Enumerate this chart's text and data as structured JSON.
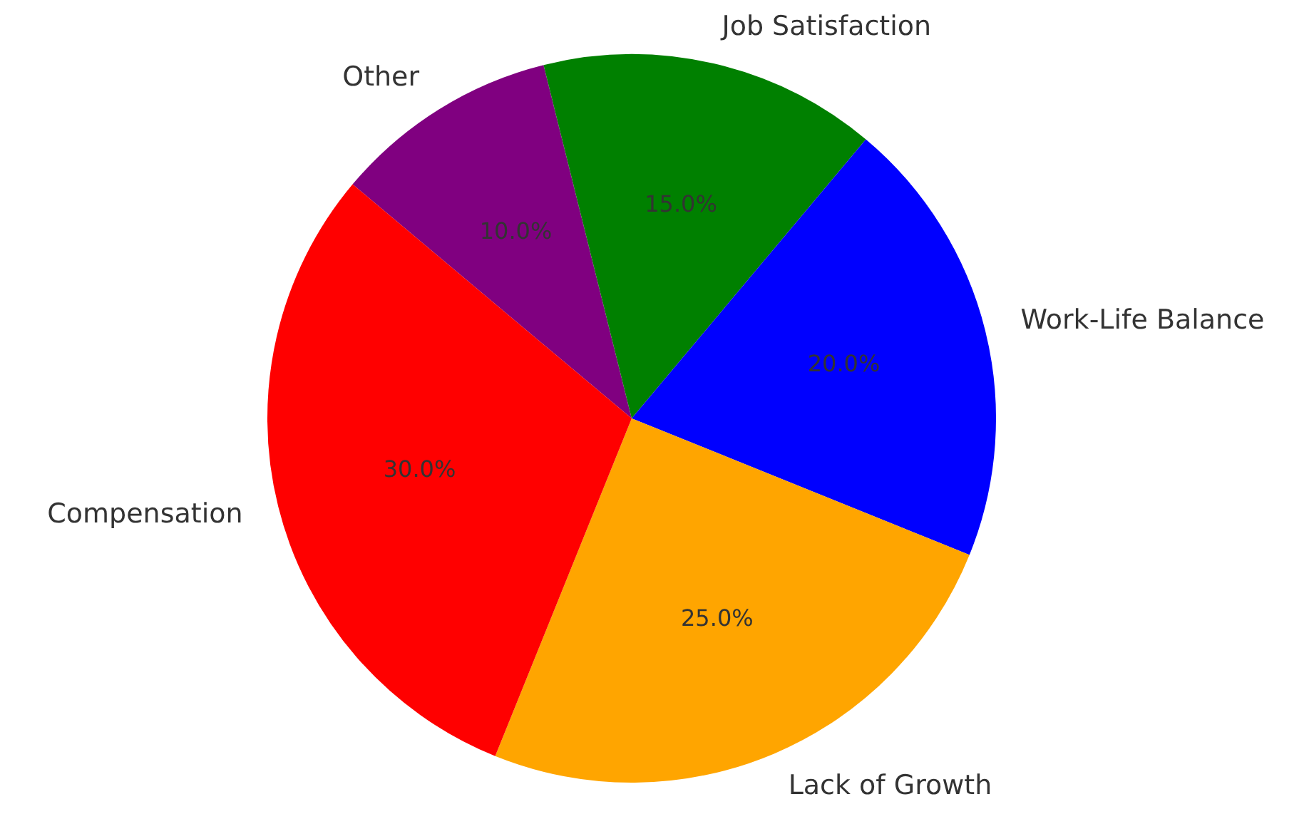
{
  "chart_data": {
    "type": "pie",
    "categories": [
      "Compensation",
      "Lack of Growth",
      "Work-Life Balance",
      "Job Satisfaction",
      "Other"
    ],
    "values": [
      30,
      25,
      20,
      15,
      10
    ],
    "colors": [
      "#ff0000",
      "#ffa500",
      "#0000ff",
      "#008000",
      "#800080"
    ],
    "value_labels": [
      "30.0%",
      "25.0%",
      "20.0%",
      "15.0%",
      "10.0%"
    ],
    "legend": false
  }
}
